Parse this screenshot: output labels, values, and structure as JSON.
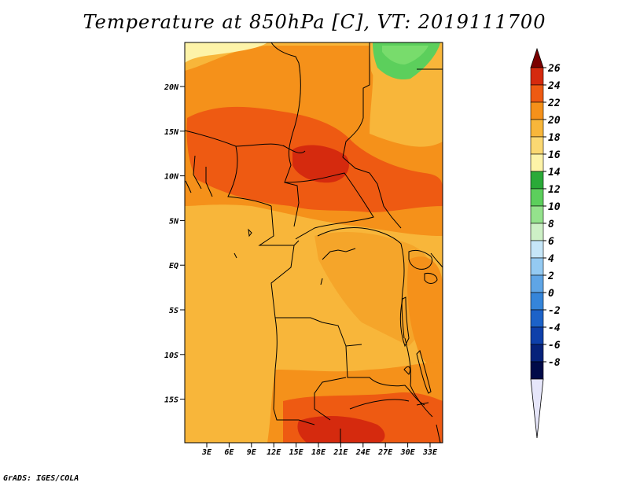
{
  "title": "Temperature at 850hPa [C], VT: 2019111700",
  "credit": "GrADS: IGES/COLA",
  "map": {
    "lat_labels": [
      "20N",
      "15N",
      "10N",
      "5N",
      "EQ",
      "5S",
      "10S",
      "15S"
    ],
    "lon_labels": [
      "3E",
      "6E",
      "9E",
      "12E",
      "15E",
      "18E",
      "21E",
      "24E",
      "27E",
      "30E",
      "33E"
    ]
  },
  "colorbar": {
    "labels": [
      "26",
      "24",
      "22",
      "20",
      "18",
      "16",
      "14",
      "12",
      "10",
      "8",
      "6",
      "4",
      "2",
      "0",
      "-2",
      "-4",
      "-6",
      "-8"
    ],
    "colors": [
      "#7a0000",
      "#d52a0e",
      "#ee5a12",
      "#f5911a",
      "#f8b63a",
      "#fbd872",
      "#fdf3a8",
      "#2aaa38",
      "#5ccf5c",
      "#94e28c",
      "#cdf0c6",
      "#c6e6f8",
      "#94caf2",
      "#5fa5e6",
      "#3585da",
      "#1c62c8",
      "#0e40aa",
      "#06227a",
      "#000a48",
      "#e6e6fa"
    ]
  }
}
